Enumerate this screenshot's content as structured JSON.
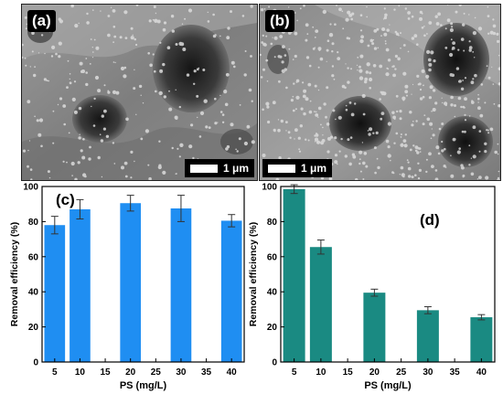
{
  "panels": {
    "a": {
      "label": "(a)",
      "scale_label": "1 μm"
    },
    "b": {
      "label": "(b)",
      "scale_label": "1 μm"
    }
  },
  "chart_data": [
    {
      "panel": "(c)",
      "type": "bar",
      "xlabel": "PS (mg/L)",
      "ylabel": "Removal efficiency (%)",
      "xlim": [
        2.5,
        42.5
      ],
      "ylim": [
        0,
        100
      ],
      "xticks": [
        5,
        10,
        15,
        20,
        25,
        30,
        35,
        40
      ],
      "yticks": [
        0,
        20,
        40,
        60,
        80,
        100
      ],
      "x": [
        5,
        10,
        20,
        30,
        40
      ],
      "values": [
        78,
        87,
        90.5,
        87.5,
        80.5
      ],
      "errors": [
        5,
        5.5,
        4.5,
        7.5,
        3.5
      ],
      "color": "#1f8ef2",
      "grid": false
    },
    {
      "panel": "(d)",
      "type": "bar",
      "xlabel": "PS (mg/L)",
      "ylabel": "Removal efficiency (%)",
      "xlim": [
        2.5,
        42.5
      ],
      "ylim": [
        0,
        100
      ],
      "xticks": [
        5,
        10,
        15,
        20,
        25,
        30,
        35,
        40
      ],
      "yticks": [
        0,
        20,
        40,
        60,
        80,
        100
      ],
      "x": [
        5,
        10,
        20,
        30,
        40
      ],
      "values": [
        98.5,
        65.5,
        39.5,
        29.5,
        25.5
      ],
      "errors": [
        2.5,
        4,
        2,
        2,
        1.5
      ],
      "color": "#1a8a82",
      "grid": false
    }
  ]
}
